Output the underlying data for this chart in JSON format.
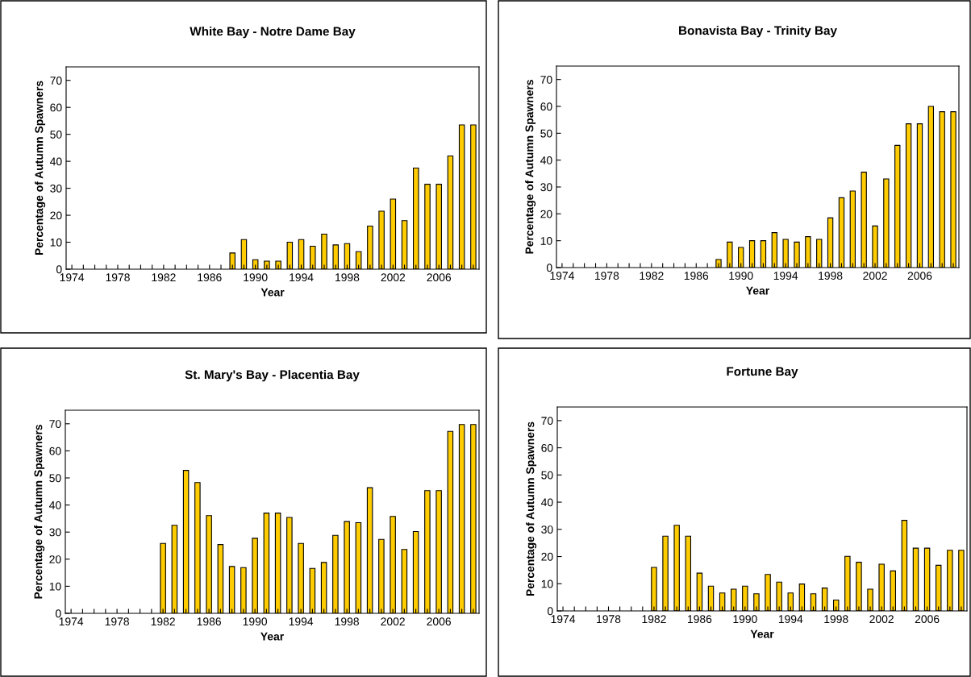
{
  "chart_data": [
    {
      "type": "bar",
      "title": "White Bay - Notre Dame Bay",
      "xlabel": "Year",
      "ylabel": "Percentage of Autumn Spawners",
      "categories": [
        "1974",
        null,
        null,
        null,
        "1978",
        null,
        null,
        null,
        "1982",
        null,
        null,
        null,
        "1986",
        null,
        null,
        null,
        "1990",
        null,
        null,
        null,
        "1994",
        null,
        null,
        null,
        "1998",
        null,
        null,
        null,
        "2002",
        null,
        null,
        null,
        "2006",
        null,
        null,
        null
      ],
      "color": "#ffcc00",
      "ylim": [
        0,
        75
      ],
      "yticks": [
        0,
        10,
        20,
        30,
        40,
        50,
        60,
        70
      ],
      "legend": false,
      "grid": false,
      "values": [
        null,
        null,
        null,
        null,
        null,
        null,
        null,
        null,
        null,
        null,
        null,
        null,
        null,
        null,
        6,
        11,
        3.5,
        3,
        3,
        10,
        11,
        8.5,
        13,
        9,
        9.5,
        6.5,
        16,
        21.5,
        26,
        18,
        37.5,
        31.5,
        31.5,
        42,
        53.5,
        53.5
      ]
    },
    {
      "type": "bar",
      "title": "Bonavista Bay - Trinity Bay",
      "xlabel": "Year",
      "ylabel": "Percentage of Autumn Spawners",
      "categories": [
        "1974",
        null,
        null,
        null,
        "1978",
        null,
        null,
        null,
        "1982",
        null,
        null,
        null,
        "1986",
        null,
        null,
        null,
        "1990",
        null,
        null,
        null,
        "1994",
        null,
        null,
        null,
        "1998",
        null,
        null,
        null,
        "2002",
        null,
        null,
        null,
        "2006",
        null,
        null,
        null
      ],
      "color": "#ffcc00",
      "ylim": [
        0,
        75
      ],
      "yticks": [
        0,
        10,
        20,
        30,
        40,
        50,
        60,
        70
      ],
      "legend": false,
      "grid": false,
      "values": [
        null,
        null,
        null,
        null,
        null,
        null,
        null,
        null,
        null,
        null,
        null,
        null,
        null,
        null,
        3,
        9.5,
        7.5,
        10,
        10,
        13,
        10.5,
        9.5,
        11.5,
        10.5,
        18.5,
        26,
        28.5,
        35.5,
        15.5,
        33,
        45.5,
        53.5,
        53.5,
        60,
        58,
        58
      ]
    },
    {
      "type": "bar",
      "title": "St. Mary's Bay - Placentia Bay",
      "xlabel": "Year",
      "ylabel": "Percentage of Autumn Spawners",
      "categories": [
        "1974",
        null,
        null,
        null,
        "1978",
        null,
        null,
        null,
        "1982",
        null,
        null,
        null,
        "1986",
        null,
        null,
        null,
        "1990",
        null,
        null,
        null,
        "1994",
        null,
        null,
        null,
        "1998",
        null,
        null,
        null,
        "2002",
        null,
        null,
        null,
        "2006",
        null,
        null,
        null
      ],
      "color": "#ffcc00",
      "ylim": [
        0,
        75
      ],
      "yticks": [
        0,
        10,
        20,
        30,
        40,
        50,
        60,
        70
      ],
      "legend": false,
      "grid": false,
      "values": [
        null,
        null,
        null,
        null,
        null,
        null,
        null,
        null,
        25.8,
        32.5,
        52.8,
        48.3,
        36.1,
        25.4,
        17.3,
        16.9,
        27.7,
        37,
        37,
        35.4,
        25.8,
        16.6,
        18.8,
        28.8,
        33.9,
        33.5,
        46.4,
        27.3,
        35.8,
        23.6,
        30.2,
        45.3,
        45.3,
        67.2,
        69.7,
        69.7
      ]
    },
    {
      "type": "bar",
      "title": "Fortune Bay",
      "xlabel": "Year",
      "ylabel": "Percentage of Autumn Spawners",
      "categories": [
        "1974",
        null,
        null,
        null,
        "1978",
        null,
        null,
        null,
        "1982",
        null,
        null,
        null,
        "1986",
        null,
        null,
        null,
        "1990",
        null,
        null,
        null,
        "1994",
        null,
        null,
        null,
        "1998",
        null,
        null,
        null,
        "2002",
        null,
        null,
        null,
        "2006",
        null,
        null,
        null
      ],
      "color": "#ffcc00",
      "ylim": [
        0,
        75
      ],
      "yticks": [
        0,
        10,
        20,
        30,
        40,
        50,
        60,
        70
      ],
      "legend": false,
      "grid": false,
      "values": [
        null,
        null,
        null,
        null,
        null,
        null,
        null,
        null,
        16,
        27.5,
        31.5,
        27.5,
        13.9,
        9.1,
        6.6,
        8,
        9.1,
        6.3,
        13.4,
        10.6,
        6.6,
        9.9,
        6.3,
        8.4,
        4,
        20.1,
        17.9,
        8,
        17.2,
        14.7,
        33.3,
        23.1,
        23.1,
        16.8,
        22.3,
        22.3
      ]
    }
  ]
}
